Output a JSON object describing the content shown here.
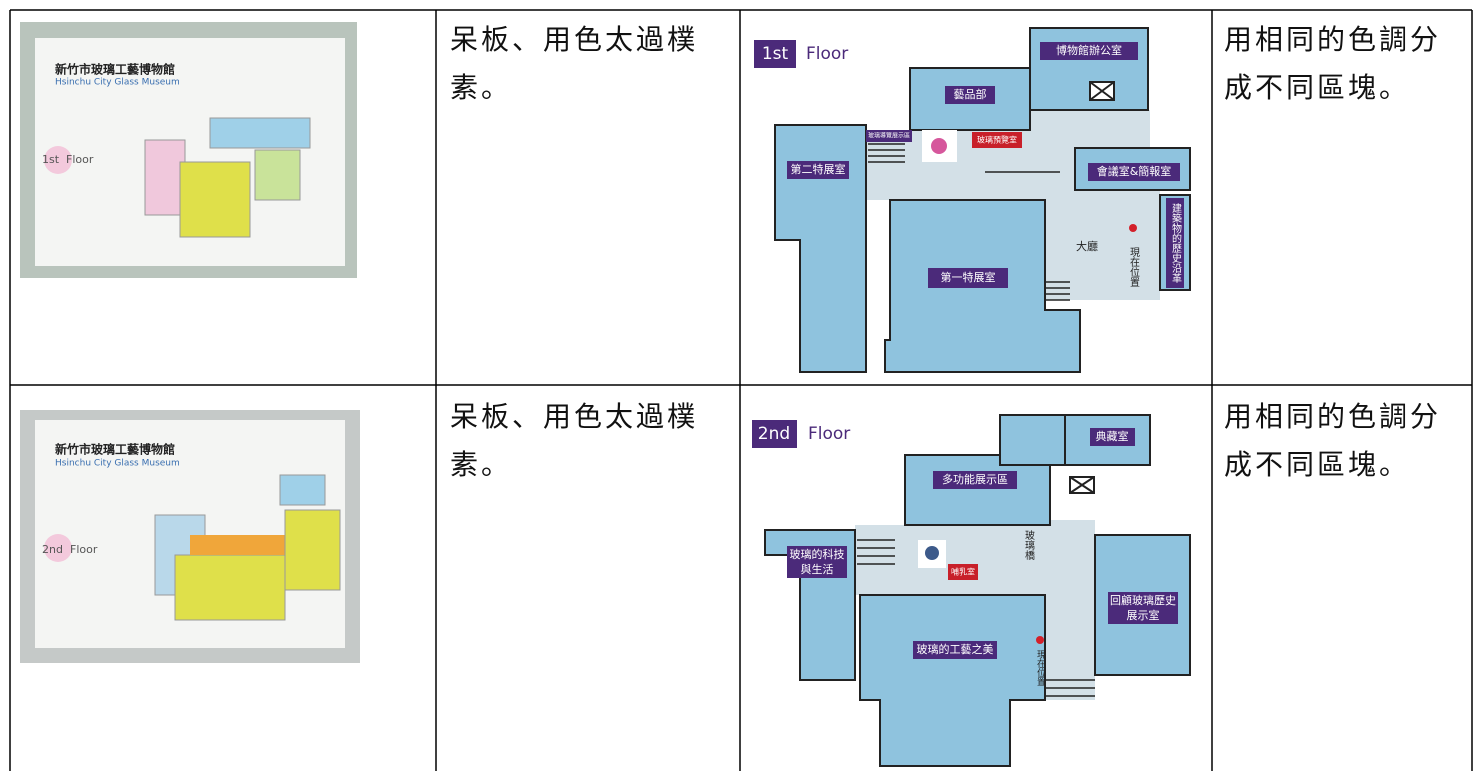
{
  "table": {
    "rows": [
      {
        "photo": {
          "title": "新竹市玻璃工藝博物館",
          "subtitle": "Hsinchu City Glass Museum",
          "floor_num": "1st",
          "floor_word": "Floor"
        },
        "critique": "呆板、用色太過樸素。",
        "plan": {
          "floor_num": "1st",
          "floor_word": "Floor",
          "labels": [
            "博物館辦公室",
            "藝品部",
            "玻璃導覽展示區",
            "玻璃預覽室",
            "第二特展室",
            "會議室&簡報室",
            "建築物的歷史沿革",
            "大廳",
            "現在位置",
            "第一特展室"
          ]
        },
        "suggestion": "用相同的色調分成不同區塊。"
      },
      {
        "photo": {
          "title": "新竹市玻璃工藝博物館",
          "subtitle": "Hsinchu City Glass Museum",
          "floor_num": "2nd",
          "floor_word": "Floor"
        },
        "critique": "呆板、用色太過樸素。",
        "plan": {
          "floor_num": "2nd",
          "floor_word": "Floor",
          "labels": [
            "典藏室",
            "多功能展示區",
            "玻璃橋",
            "玻璃的科技",
            "與生活",
            "哺乳室",
            "回顧玻璃歷史",
            "展示室",
            "玻璃的工藝之美",
            "現在位置"
          ]
        },
        "suggestion": "用相同的色調分成不同區塊。"
      }
    ]
  }
}
